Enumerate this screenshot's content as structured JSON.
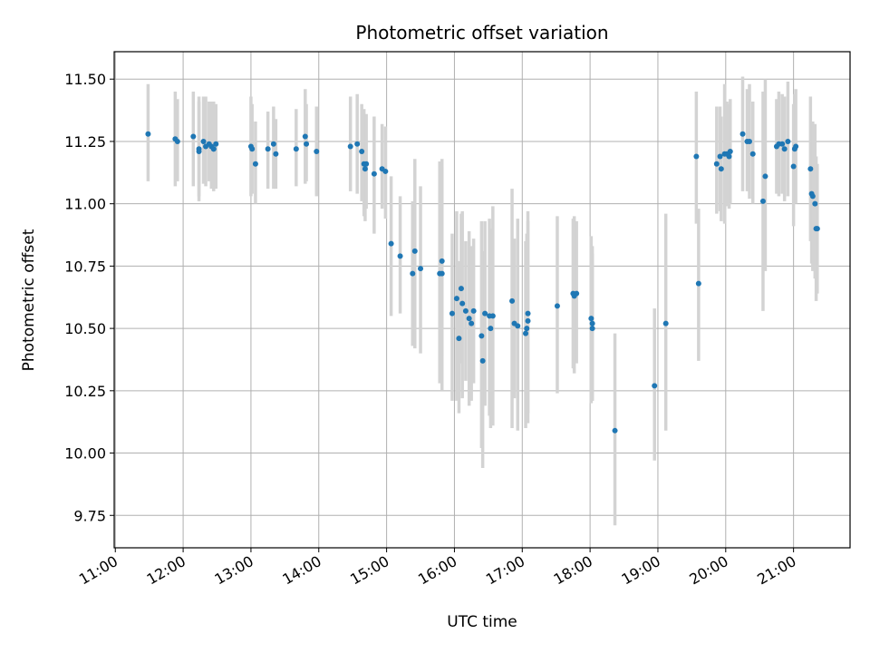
{
  "chart_data": {
    "type": "scatter",
    "title": "Photometric offset variation",
    "xlabel": "UTC time",
    "ylabel": "Photometric offset",
    "x_ticks": [
      "11:00",
      "12:00",
      "13:00",
      "14:00",
      "15:00",
      "16:00",
      "17:00",
      "18:00",
      "19:00",
      "20:00",
      "21:00"
    ],
    "y_ticks": [
      "9.75",
      "10.00",
      "10.25",
      "10.50",
      "10.75",
      "11.00",
      "11.25",
      "11.50"
    ],
    "xlim": [
      "10:59",
      "21:50"
    ],
    "ylim": [
      9.62,
      11.61
    ],
    "grid": true,
    "point_color": "#1f77b4",
    "errorbar_color": "#d3d3d3",
    "series": [
      {
        "x": [
          "11:29",
          "11:53",
          "11:55",
          "12:09",
          "12:14",
          "12:14",
          "12:18",
          "12:20",
          "12:23",
          "12:25",
          "12:27",
          "12:27",
          "12:29",
          "13:00",
          "13:01",
          "13:04",
          "13:15",
          "13:20",
          "13:22",
          "13:40",
          "13:48",
          "13:49",
          "13:58",
          "14:28",
          "14:34",
          "14:38",
          "14:40",
          "14:41",
          "14:42",
          "14:49",
          "14:56",
          "14:59",
          "15:04",
          "15:12",
          "15:23",
          "15:25",
          "15:30",
          "15:47",
          "15:49",
          "15:49",
          "15:58",
          "16:02",
          "16:04",
          "16:06",
          "16:07",
          "16:10",
          "16:13",
          "16:15",
          "16:17",
          "16:24",
          "16:25",
          "16:27",
          "16:31",
          "16:32",
          "16:34",
          "16:51",
          "16:53",
          "16:56",
          "17:03",
          "17:04",
          "17:05",
          "17:05",
          "17:31",
          "17:45",
          "17:46",
          "17:48",
          "18:01",
          "18:02",
          "18:02",
          "18:22",
          "18:57",
          "19:07",
          "19:34",
          "19:36",
          "19:52",
          "19:55",
          "19:56",
          "19:59",
          "20:01",
          "20:03",
          "20:04",
          "20:15",
          "20:19",
          "20:21",
          "20:24",
          "20:33",
          "20:35",
          "20:45",
          "20:47",
          "20:50",
          "20:52",
          "20:55",
          "21:00",
          "21:01",
          "21:02",
          "21:15",
          "21:16",
          "21:17",
          "21:19",
          "21:20",
          "21:21"
        ],
        "y": [
          11.28,
          11.26,
          11.25,
          11.27,
          11.22,
          11.21,
          11.25,
          11.23,
          11.24,
          11.23,
          11.22,
          11.22,
          11.24,
          11.23,
          11.22,
          11.16,
          11.22,
          11.24,
          11.2,
          11.22,
          11.27,
          11.24,
          11.21,
          11.23,
          11.24,
          11.21,
          11.16,
          11.14,
          11.16,
          11.12,
          11.14,
          11.13,
          10.84,
          10.79,
          10.72,
          10.81,
          10.74,
          10.72,
          10.72,
          10.77,
          10.56,
          10.62,
          10.46,
          10.66,
          10.6,
          10.57,
          10.54,
          10.52,
          10.57,
          10.47,
          10.37,
          10.56,
          10.55,
          10.5,
          10.55,
          10.61,
          10.52,
          10.51,
          10.48,
          10.5,
          10.53,
          10.56,
          10.59,
          10.64,
          10.63,
          10.64,
          10.54,
          10.52,
          10.5,
          10.09,
          10.27,
          10.52,
          11.19,
          10.68,
          11.16,
          11.19,
          11.14,
          11.2,
          11.2,
          11.19,
          11.21,
          11.28,
          11.25,
          11.25,
          11.2,
          11.01,
          11.11,
          11.23,
          11.24,
          11.24,
          11.22,
          11.25,
          11.15,
          11.22,
          11.23,
          11.14,
          11.04,
          11.03,
          11.0,
          10.9,
          10.9
        ],
        "yerr_low": [
          11.09,
          11.07,
          11.09,
          11.07,
          11.01,
          11.03,
          11.08,
          11.07,
          11.09,
          11.06,
          11.06,
          11.05,
          11.06,
          11.03,
          11.04,
          11.0,
          11.06,
          11.06,
          11.06,
          11.07,
          11.08,
          11.09,
          11.03,
          11.05,
          11.04,
          11.01,
          10.95,
          10.93,
          10.98,
          10.88,
          10.98,
          10.94,
          10.55,
          10.56,
          10.43,
          10.42,
          10.4,
          10.28,
          10.25,
          10.39,
          10.21,
          10.21,
          10.16,
          10.36,
          10.22,
          10.29,
          10.19,
          10.21,
          10.28,
          10.02,
          9.94,
          10.19,
          10.15,
          10.1,
          10.11,
          10.1,
          10.22,
          10.09,
          10.1,
          10.13,
          10.12,
          10.16,
          10.24,
          10.34,
          10.32,
          10.36,
          10.2,
          10.21,
          10.21,
          9.71,
          9.97,
          10.09,
          10.92,
          10.37,
          10.96,
          10.97,
          10.93,
          10.92,
          10.99,
          10.98,
          11.0,
          11.05,
          11.05,
          11.02,
          11.0,
          10.57,
          10.73,
          11.04,
          11.03,
          11.04,
          11.01,
          11.03,
          10.91,
          11.01,
          11.0,
          10.85,
          10.76,
          10.73,
          10.7,
          10.61,
          10.64
        ],
        "yerr_high": [
          11.48,
          11.45,
          11.42,
          11.45,
          11.43,
          11.41,
          11.43,
          11.43,
          11.41,
          11.41,
          11.41,
          11.39,
          11.4,
          11.43,
          11.4,
          11.33,
          11.37,
          11.39,
          11.34,
          11.38,
          11.46,
          11.4,
          11.39,
          11.43,
          11.44,
          11.4,
          11.38,
          11.35,
          11.36,
          11.35,
          11.32,
          11.31,
          11.11,
          11.03,
          11.01,
          11.18,
          11.07,
          11.17,
          11.18,
          11.15,
          10.88,
          10.97,
          10.77,
          10.96,
          10.97,
          10.85,
          10.89,
          10.83,
          10.86,
          10.93,
          10.81,
          10.93,
          10.94,
          10.9,
          10.99,
          11.06,
          10.86,
          10.94,
          10.85,
          10.88,
          10.93,
          10.97,
          10.95,
          10.94,
          10.95,
          10.93,
          10.87,
          10.83,
          10.8,
          10.48,
          10.58,
          10.96,
          11.45,
          10.98,
          11.39,
          11.39,
          11.35,
          11.48,
          11.41,
          11.4,
          11.42,
          11.51,
          11.46,
          11.48,
          11.41,
          11.45,
          11.5,
          11.42,
          11.45,
          11.44,
          11.43,
          11.49,
          11.4,
          11.44,
          11.46,
          11.43,
          11.33,
          11.33,
          11.32,
          11.19,
          11.16
        ]
      }
    ]
  }
}
